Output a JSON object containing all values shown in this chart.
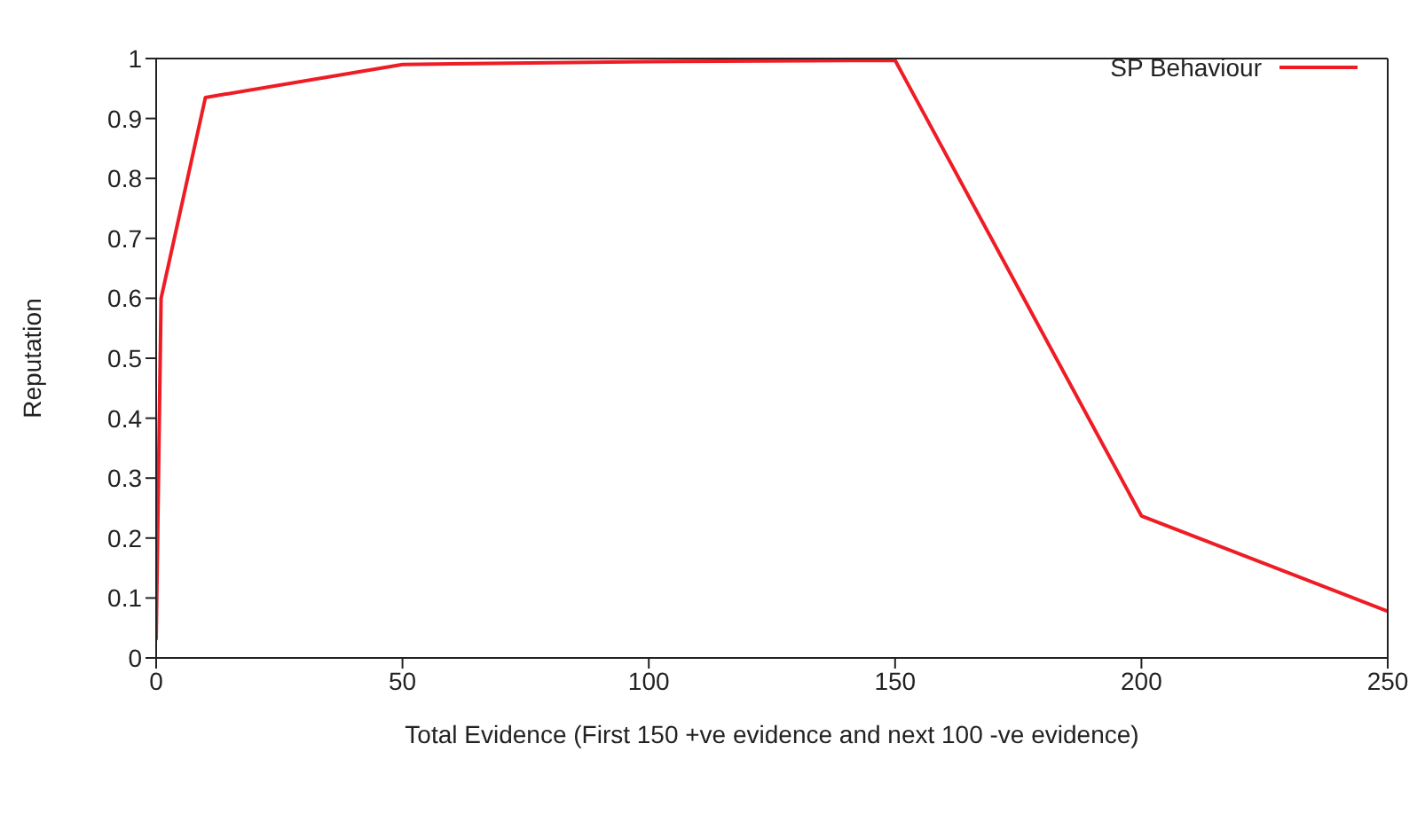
{
  "chart_data": {
    "type": "line",
    "xlabel": "Total Evidence (First 150 +ve evidence and next 100 -ve evidence)",
    "ylabel": "Reputation",
    "x": [
      0,
      1,
      10,
      50,
      100,
      150,
      200,
      250
    ],
    "series": [
      {
        "name": "SP Behaviour",
        "color": "#ee1c25",
        "values": [
          0.03,
          0.6,
          0.935,
          0.99,
          0.995,
          0.997,
          0.237,
          0.078
        ]
      }
    ],
    "xlim": [
      0,
      250
    ],
    "xticks": [
      0,
      50,
      100,
      150,
      200,
      250
    ],
    "ylim": [
      0,
      1
    ],
    "yticks": [
      0,
      0.1,
      0.2,
      0.3,
      0.4,
      0.5,
      0.6,
      0.7,
      0.8,
      0.9,
      1
    ],
    "grid": false,
    "legend": "top right",
    "marker": "none",
    "line_style": "solid"
  }
}
